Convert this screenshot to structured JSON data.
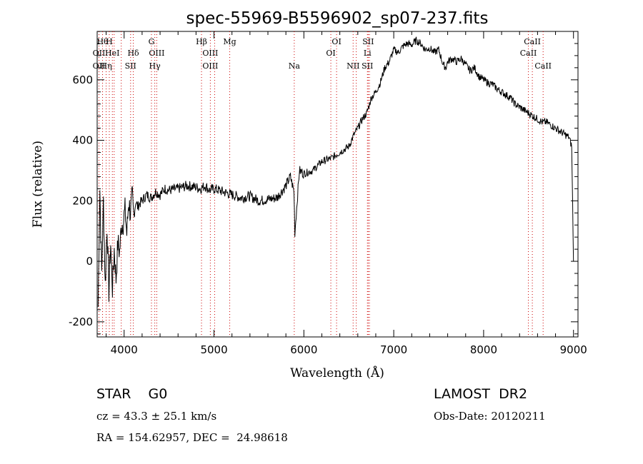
{
  "chart_data": {
    "type": "line",
    "title": "spec-55969-B5596902_sp07-237.fits",
    "xlabel": "Wavelength (Å)",
    "ylabel": "Flux (relative)",
    "xlim": [
      3700,
      9050
    ],
    "ylim": [
      -250,
      760
    ],
    "x_ticks": [
      4000,
      5000,
      6000,
      7000,
      8000,
      9000
    ],
    "y_ticks": [
      -200,
      0,
      200,
      400,
      600
    ],
    "grid": false,
    "series": [
      {
        "x": [
          3710,
          3730,
          3750,
          3770,
          3790,
          3810,
          3830,
          3850,
          3870,
          3890,
          3910,
          3930,
          3950,
          3970,
          3990,
          4010,
          4030,
          4050,
          4070,
          4090,
          4110,
          4130,
          4150,
          4170,
          4200,
          4250,
          4300,
          4350,
          4400,
          4450,
          4500,
          4600,
          4700,
          4800,
          4850,
          4900,
          4950,
          5000,
          5100,
          5200,
          5300,
          5400,
          5500,
          5600,
          5700,
          5800,
          5850,
          5890,
          5900,
          5950,
          6000,
          6100,
          6200,
          6300,
          6400,
          6500,
          6560,
          6600,
          6650,
          6700,
          6750,
          6800,
          6850,
          6900,
          6950,
          7000,
          7050,
          7100,
          7150,
          7200,
          7250,
          7300,
          7350,
          7400,
          7450,
          7500,
          7550,
          7580,
          7600,
          7650,
          7700,
          7750,
          7800,
          7850,
          7900,
          7950,
          8000,
          8050,
          8100,
          8150,
          8200,
          8250,
          8300,
          8350,
          8400,
          8450,
          8500,
          8550,
          8600,
          8650,
          8700,
          8750,
          8800,
          8850,
          8900,
          8950,
          8980,
          9000
        ],
        "values": [
          -150,
          240,
          -40,
          200,
          -80,
          120,
          -100,
          60,
          -90,
          40,
          -60,
          60,
          30,
          120,
          130,
          170,
          90,
          200,
          160,
          210,
          150,
          200,
          180,
          190,
          200,
          220,
          210,
          230,
          220,
          240,
          235,
          240,
          250,
          245,
          240,
          250,
          235,
          240,
          230,
          220,
          210,
          215,
          200,
          205,
          210,
          250,
          280,
          230,
          95,
          300,
          290,
          300,
          330,
          340,
          360,
          380,
          420,
          440,
          470,
          490,
          540,
          560,
          590,
          640,
          660,
          700,
          690,
          710,
          720,
          715,
          730,
          720,
          700,
          705,
          690,
          700,
          650,
          640,
          660,
          670,
          660,
          670,
          650,
          630,
          640,
          610,
          600,
          590,
          585,
          570,
          560,
          550,
          540,
          520,
          510,
          500,
          490,
          480,
          470,
          460,
          460,
          450,
          440,
          430,
          420,
          410,
          380,
          0
        ],
        "color": "#000000"
      }
    ],
    "lines": [
      {
        "x": 3720,
        "labels": [
          null,
          "OII",
          "OII"
        ]
      },
      {
        "x": 3760,
        "labels": [
          "Hθ",
          null,
          null
        ]
      },
      {
        "x": 3800,
        "labels": [
          null,
          null,
          "Hη"
        ]
      },
      {
        "x": 3835,
        "labels": [
          "H",
          null,
          null
        ]
      },
      {
        "x": 3869,
        "labels": [
          null,
          "HeI",
          null
        ]
      },
      {
        "x": 3889,
        "labels": [
          null,
          null,
          null
        ]
      },
      {
        "x": 3968,
        "labels": [
          null,
          null,
          null
        ]
      },
      {
        "x": 4072,
        "labels": [
          null,
          null,
          "SII"
        ]
      },
      {
        "x": 4102,
        "labels": [
          null,
          "Hδ",
          null
        ]
      },
      {
        "x": 4304,
        "labels": [
          "G",
          null,
          null
        ]
      },
      {
        "x": 4341,
        "labels": [
          null,
          null,
          "Hγ"
        ]
      },
      {
        "x": 4363,
        "labels": [
          null,
          "OIII",
          null
        ]
      },
      {
        "x": 4861,
        "labels": [
          "Hβ",
          null,
          null
        ]
      },
      {
        "x": 4959,
        "labels": [
          null,
          "OIII",
          "OIII"
        ]
      },
      {
        "x": 5007,
        "labels": [
          null,
          null,
          null
        ]
      },
      {
        "x": 5175,
        "labels": [
          "Mg",
          null,
          null
        ]
      },
      {
        "x": 5893,
        "labels": [
          null,
          null,
          "Na"
        ]
      },
      {
        "x": 6300,
        "labels": [
          null,
          "OI",
          null
        ]
      },
      {
        "x": 6364,
        "labels": [
          "OI",
          null,
          null
        ]
      },
      {
        "x": 6548,
        "labels": [
          null,
          null,
          "NII"
        ]
      },
      {
        "x": 6583,
        "labels": [
          null,
          null,
          null
        ]
      },
      {
        "x": 6707,
        "labels": [
          null,
          "Li",
          "SII"
        ]
      },
      {
        "x": 6716,
        "labels": [
          "SII",
          null,
          null
        ]
      },
      {
        "x": 6730,
        "labels": [
          null,
          null,
          null
        ]
      },
      {
        "x": 8498,
        "labels": [
          null,
          "CaII",
          null
        ]
      },
      {
        "x": 8542,
        "labels": [
          "CaII",
          null,
          null
        ]
      },
      {
        "x": 8662,
        "labels": [
          null,
          null,
          "CaII"
        ]
      }
    ]
  },
  "info": {
    "object_class": "STAR    G0",
    "survey": "LAMOST  DR2",
    "cz": "cz = 43.3 ± 25.1 km/s",
    "obs_date": "Obs-Date: 20120211",
    "coords": "RA = 154.62957, DEC =  24.98618"
  }
}
